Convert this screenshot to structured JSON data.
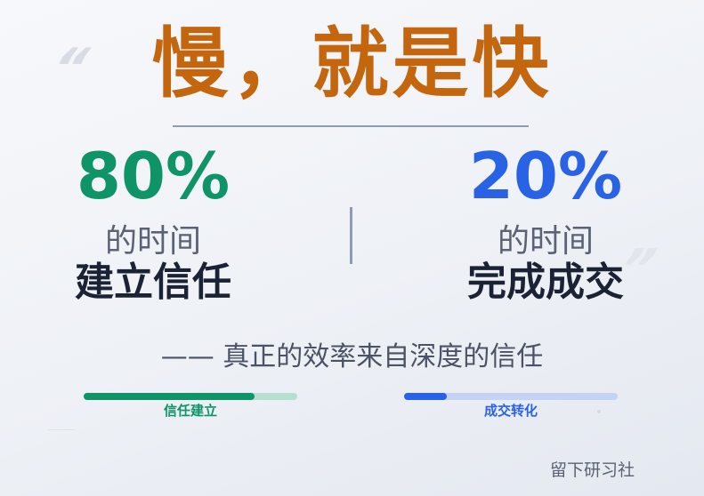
{
  "headline": "慢，就是快",
  "left": {
    "percent": "80%",
    "sub": "的时间",
    "main": "建立信任",
    "bar_label": "信任建立",
    "bar_progress": 0.8
  },
  "right": {
    "percent": "20%",
    "sub": "的时间",
    "main": "完成成交",
    "bar_label": "成交转化",
    "bar_progress": 0.2
  },
  "tagline": "—— 真正的效率来自深度的信任",
  "footer": "留下研习社",
  "colors": {
    "accent": "#c4660e",
    "green": "#0f9467",
    "blue": "#2a62e6",
    "green_track": "#b7dfd0",
    "blue_track": "#c3d3f5",
    "dark_text": "#1b2233"
  },
  "icons": [
    "quote-mark-icon"
  ]
}
